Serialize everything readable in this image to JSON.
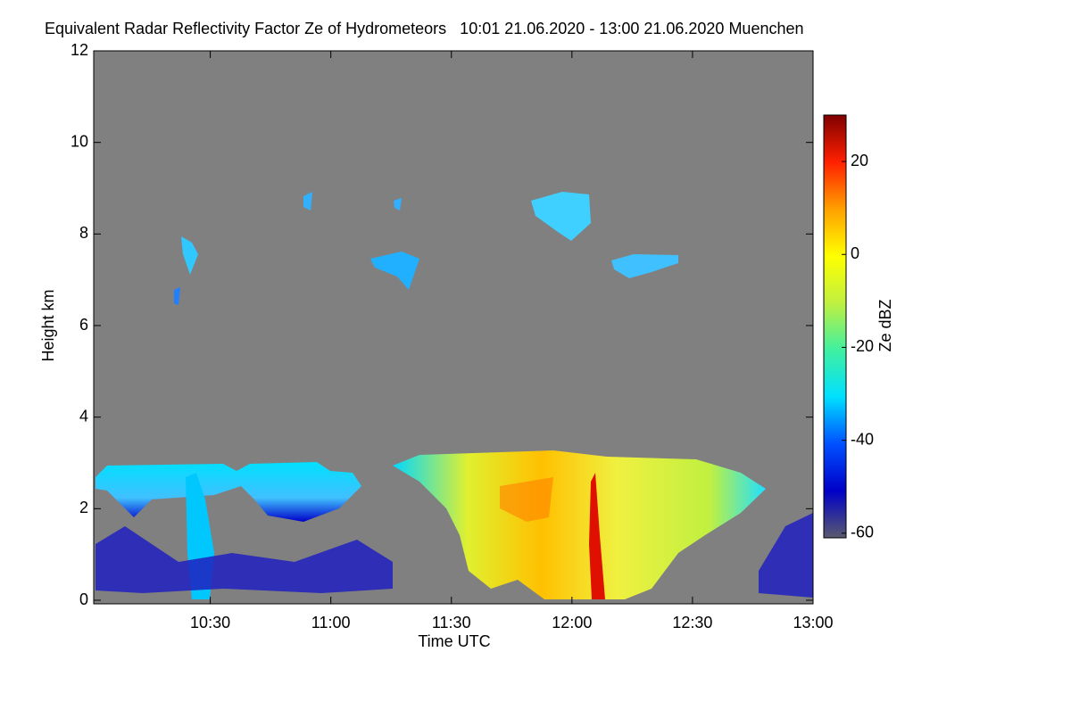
{
  "chart_data": {
    "type": "heatmap",
    "title": "Equivalent Radar Reflectivity Factor Ze of Hydrometeors   10:01 21.06.2020 - 13:00 21.06.2020 Muenchen",
    "x_label": "Time UTC",
    "y_label": "Height km",
    "xlim": [
      "10:01",
      "13:00"
    ],
    "xticks": [
      "10:30",
      "11:00",
      "11:30",
      "12:00",
      "12:30",
      "13:00"
    ],
    "ylim": [
      0,
      12
    ],
    "yticks": [
      0,
      2,
      4,
      6,
      8,
      10,
      12
    ],
    "background": "#808080",
    "colorbar": {
      "label": "Ze dBZ",
      "lim": [
        -61,
        30
      ],
      "ticks": [
        -60,
        -40,
        -20,
        0,
        20
      ],
      "colormap": [
        "#5a5a6e",
        "#0000c8",
        "#0050ff",
        "#00e0ff",
        "#40f0a0",
        "#c0f040",
        "#ffff00",
        "#ffa000",
        "#ff2000",
        "#800000"
      ]
    }
  }
}
